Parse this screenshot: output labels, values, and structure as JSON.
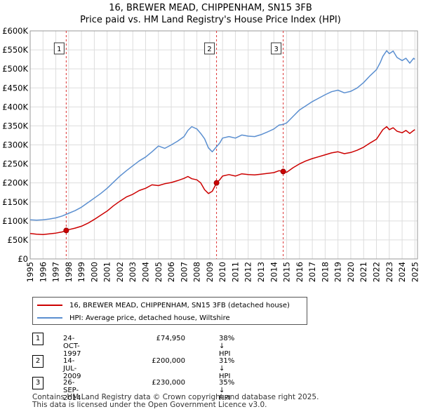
{
  "title_line1": "16, BREWER MEAD, CHIPPENHAM, SN15 3FB",
  "title_line2": "Price paid vs. HM Land Registry's House Price Index (HPI)",
  "chart_data": {
    "type": "line",
    "title": "16, BREWER MEAD, CHIPPENHAM, SN15 3FB",
    "subtitle": "Price paid vs. HM Land Registry's House Price Index (HPI)",
    "xlabel": "",
    "ylabel": "",
    "xlim": [
      1995,
      2025.2
    ],
    "ylim": [
      0,
      600000
    ],
    "grid": true,
    "x_ticks": [
      1995,
      1996,
      1997,
      1998,
      1999,
      2000,
      2001,
      2002,
      2003,
      2004,
      2005,
      2006,
      2007,
      2008,
      2009,
      2010,
      2011,
      2012,
      2013,
      2014,
      2015,
      2016,
      2017,
      2018,
      2019,
      2020,
      2021,
      2022,
      2023,
      2024,
      2025
    ],
    "y_ticks": [
      0,
      50000,
      100000,
      150000,
      200000,
      250000,
      300000,
      350000,
      400000,
      450000,
      500000,
      550000,
      600000
    ],
    "y_tick_labels": [
      "£0",
      "£50K",
      "£100K",
      "£150K",
      "£200K",
      "£250K",
      "£300K",
      "£350K",
      "£400K",
      "£450K",
      "£500K",
      "£550K",
      "£600K"
    ],
    "series": [
      {
        "name": "16, BREWER MEAD, CHIPPENHAM, SN15 3FB (detached house)",
        "color": "#cc0000",
        "x": [
          1995.0,
          1995.5,
          1996.0,
          1996.5,
          1997.0,
          1997.5,
          1997.81,
          1998.0,
          1998.5,
          1999.0,
          1999.5,
          2000.0,
          2000.5,
          2001.0,
          2001.5,
          2002.0,
          2002.5,
          2003.0,
          2003.5,
          2004.0,
          2004.5,
          2005.0,
          2005.5,
          2006.0,
          2006.5,
          2007.0,
          2007.3,
          2007.6,
          2008.0,
          2008.3,
          2008.6,
          2008.9,
          2009.2,
          2009.4,
          2009.53,
          2009.8,
          2010.0,
          2010.5,
          2011.0,
          2011.5,
          2012.0,
          2012.5,
          2013.0,
          2013.5,
          2014.0,
          2014.4,
          2014.73,
          2015.0,
          2015.5,
          2016.0,
          2016.5,
          2017.0,
          2017.5,
          2018.0,
          2018.5,
          2019.0,
          2019.5,
          2020.0,
          2020.5,
          2021.0,
          2021.5,
          2022.0,
          2022.3,
          2022.5,
          2022.8,
          2023.0,
          2023.3,
          2023.6,
          2024.0,
          2024.3,
          2024.6,
          2024.9,
          2025.0
        ],
        "values": [
          67000,
          65000,
          64000,
          66000,
          68000,
          71000,
          74950,
          77000,
          81000,
          86000,
          94000,
          104000,
          115000,
          126000,
          140000,
          152000,
          163000,
          170000,
          180000,
          186000,
          195000,
          193000,
          198000,
          201000,
          206000,
          212000,
          217000,
          211000,
          208000,
          200000,
          182000,
          172000,
          178000,
          191000,
          200000,
          209000,
          218000,
          222000,
          218000,
          224000,
          222000,
          221000,
          223000,
          225000,
          227000,
          232000,
          230000,
          228000,
          240000,
          250000,
          258000,
          264000,
          269000,
          274000,
          279000,
          282000,
          277000,
          280000,
          286000,
          294000,
          305000,
          315000,
          330000,
          340000,
          348000,
          340000,
          345000,
          336000,
          332000,
          338000,
          330000,
          338000,
          340000
        ]
      },
      {
        "name": "HPI: Average price, detached house, Wiltshire",
        "color": "#5b8fd0",
        "x": [
          1995.0,
          1995.5,
          1996.0,
          1996.5,
          1997.0,
          1997.5,
          1998.0,
          1998.5,
          1999.0,
          1999.5,
          2000.0,
          2000.5,
          2001.0,
          2001.5,
          2002.0,
          2002.5,
          2003.0,
          2003.5,
          2004.0,
          2004.5,
          2005.0,
          2005.5,
          2006.0,
          2006.5,
          2007.0,
          2007.3,
          2007.6,
          2008.0,
          2008.3,
          2008.6,
          2008.9,
          2009.2,
          2009.4,
          2009.6,
          2009.8,
          2010.0,
          2010.5,
          2011.0,
          2011.5,
          2012.0,
          2012.5,
          2013.0,
          2013.5,
          2014.0,
          2014.4,
          2014.73,
          2015.0,
          2015.5,
          2016.0,
          2016.5,
          2017.0,
          2017.5,
          2018.0,
          2018.5,
          2019.0,
          2019.5,
          2020.0,
          2020.5,
          2021.0,
          2021.5,
          2022.0,
          2022.3,
          2022.5,
          2022.8,
          2023.0,
          2023.3,
          2023.6,
          2024.0,
          2024.3,
          2024.6,
          2024.9,
          2025.0
        ],
        "values": [
          103000,
          102000,
          103000,
          105000,
          108000,
          113000,
          120000,
          127000,
          136000,
          148000,
          160000,
          172000,
          186000,
          202000,
          218000,
          232000,
          245000,
          258000,
          268000,
          282000,
          297000,
          291000,
          300000,
          310000,
          322000,
          338000,
          348000,
          342000,
          330000,
          316000,
          292000,
          282000,
          290000,
          298000,
          306000,
          318000,
          322000,
          318000,
          326000,
          323000,
          322000,
          327000,
          334000,
          342000,
          352000,
          354000,
          358000,
          375000,
          392000,
          403000,
          414000,
          423000,
          432000,
          440000,
          444000,
          437000,
          441000,
          450000,
          464000,
          482000,
          498000,
          517000,
          533000,
          548000,
          540000,
          547000,
          530000,
          522000,
          528000,
          515000,
          528000,
          525000
        ]
      }
    ],
    "annotations": [
      {
        "label": "1",
        "x": 1997.81,
        "value": 74950
      },
      {
        "label": "2",
        "x": 2009.53,
        "value": 200000
      },
      {
        "label": "3",
        "x": 2014.73,
        "value": 230000
      }
    ]
  },
  "legend": {
    "items": [
      {
        "label": "16, BREWER MEAD, CHIPPENHAM, SN15 3FB (detached house)",
        "color": "#cc0000"
      },
      {
        "label": "HPI: Average price, detached house, Wiltshire",
        "color": "#5b8fd0"
      }
    ]
  },
  "transactions": [
    {
      "num": "1",
      "date": "24-OCT-1997",
      "price": "£74,950",
      "hpi": "38% ↓ HPI"
    },
    {
      "num": "2",
      "date": "14-JUL-2009",
      "price": "£200,000",
      "hpi": "31% ↓ HPI"
    },
    {
      "num": "3",
      "date": "26-SEP-2014",
      "price": "£230,000",
      "hpi": "35% ↓ HPI"
    }
  ],
  "footer": {
    "line1": "Contains HM Land Registry data © Crown copyright and database right 2025.",
    "line2": "This data is licensed under the Open Government Licence v3.0."
  }
}
